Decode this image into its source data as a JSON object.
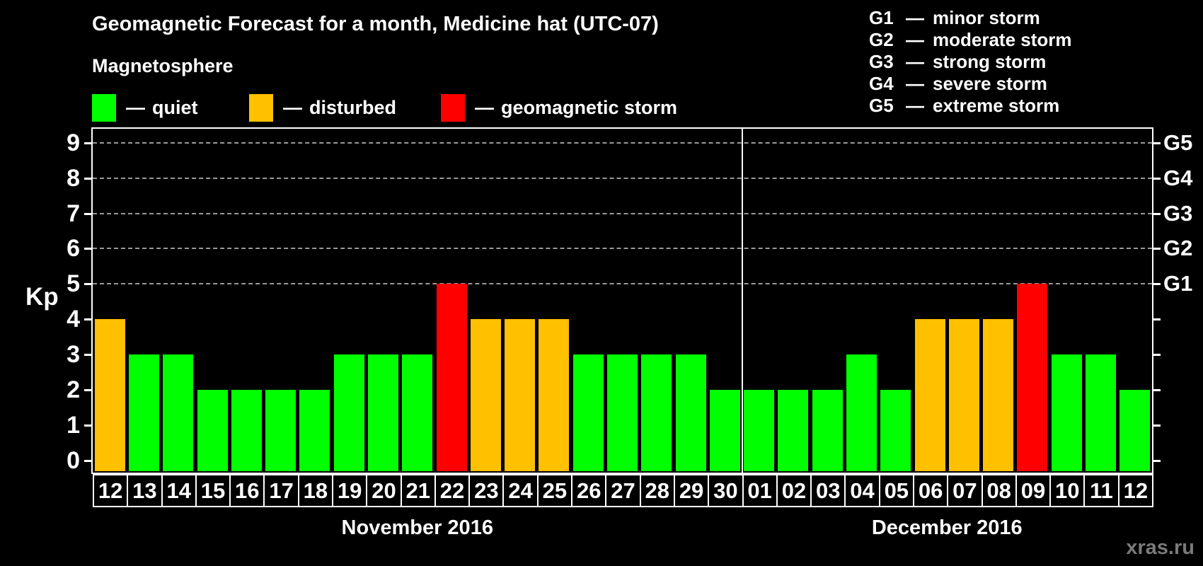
{
  "title": "Geomagnetic Forecast for a month, Medicine hat (UTC-07)",
  "magnetosphere": {
    "title": "Magnetosphere",
    "separator": "—",
    "items": [
      {
        "label": "quiet",
        "color": "#00ff00"
      },
      {
        "label": "disturbed",
        "color": "#ffc000"
      },
      {
        "label": "geomagnetic storm",
        "color": "#ff0000"
      }
    ]
  },
  "g_scale": {
    "separator": "—",
    "items": [
      {
        "code": "G1",
        "label": "minor storm"
      },
      {
        "code": "G2",
        "label": "moderate storm"
      },
      {
        "code": "G3",
        "label": "strong storm"
      },
      {
        "code": "G4",
        "label": "severe storm"
      },
      {
        "code": "G5",
        "label": "extreme storm"
      }
    ]
  },
  "watermark": "xras.ru",
  "chart_data": {
    "type": "bar",
    "title": "Geomagnetic Forecast for a month, Medicine hat (UTC-07)",
    "ylabel": "Kp",
    "ylim": [
      0,
      9
    ],
    "yticks": [
      0,
      1,
      2,
      3,
      4,
      5,
      6,
      7,
      8,
      9
    ],
    "gridlines": [
      5,
      6,
      7,
      8,
      9
    ],
    "grid": "dashed, levels 5-9 only",
    "legend_position": "top",
    "right_axis_labels": {
      "5": "G1",
      "6": "G2",
      "7": "G3",
      "8": "G4",
      "9": "G5"
    },
    "colors": {
      "quiet": "#00ff00",
      "disturbed": "#ffc000",
      "storm": "#ff0000"
    },
    "months": [
      {
        "label": "November 2016",
        "days": [
          "12",
          "13",
          "14",
          "15",
          "16",
          "17",
          "18",
          "19",
          "20",
          "21",
          "22",
          "23",
          "24",
          "25",
          "26",
          "27",
          "28",
          "29",
          "30"
        ],
        "values": [
          4,
          3,
          3,
          2,
          2,
          2,
          2,
          3,
          3,
          3,
          5,
          4,
          4,
          4,
          3,
          3,
          3,
          3,
          2
        ]
      },
      {
        "label": "December 2016",
        "days": [
          "01",
          "02",
          "03",
          "04",
          "05",
          "06",
          "07",
          "08",
          "09",
          "10",
          "11",
          "12"
        ],
        "values": [
          2,
          2,
          2,
          3,
          2,
          4,
          4,
          4,
          5,
          3,
          3,
          2
        ]
      }
    ]
  }
}
